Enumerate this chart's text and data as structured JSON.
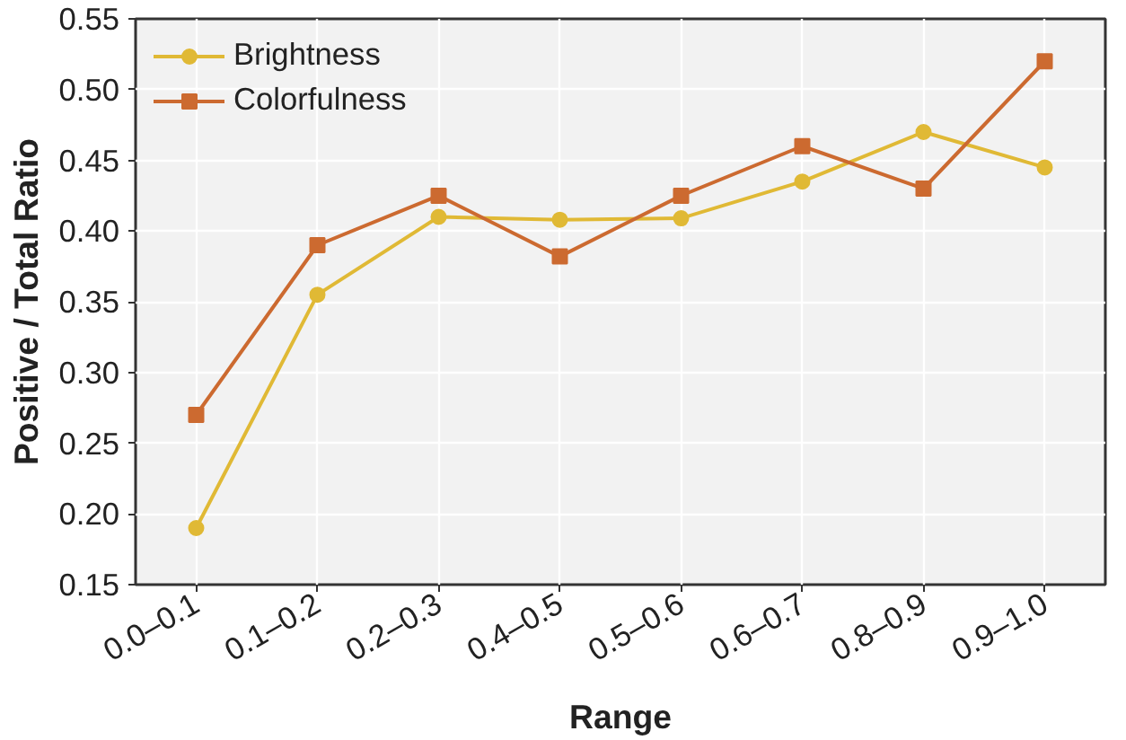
{
  "chart_data": {
    "type": "line",
    "xlabel": "Range",
    "ylabel": "Positive / Total Ratio",
    "categories": [
      "0.0–0.1",
      "0.1–0.2",
      "0.2–0.3",
      "0.4–0.5",
      "0.5–0.6",
      "0.6–0.7",
      "0.8–0.9",
      "0.9–1.0"
    ],
    "series": [
      {
        "name": "Brightness",
        "color": "#e0b935",
        "marker": "circle",
        "values": [
          0.19,
          0.355,
          0.41,
          0.408,
          0.409,
          0.435,
          0.47,
          0.445
        ]
      },
      {
        "name": "Colorfulness",
        "color": "#cc6a30",
        "marker": "square",
        "values": [
          0.27,
          0.39,
          0.425,
          0.382,
          0.425,
          0.46,
          0.43,
          0.52
        ]
      }
    ],
    "ylim": [
      0.15,
      0.55
    ],
    "yticks": [
      {
        "value": 0.15,
        "label": "0.15"
      },
      {
        "value": 0.2,
        "label": "0.20"
      },
      {
        "value": 0.25,
        "label": "0.25"
      },
      {
        "value": 0.3,
        "label": "0.30"
      },
      {
        "value": 0.35,
        "label": "0.35"
      },
      {
        "value": 0.4,
        "label": "0.40"
      },
      {
        "value": 0.45,
        "label": "0.45"
      },
      {
        "value": 0.5,
        "label": "0.50"
      },
      {
        "value": 0.55,
        "label": "0.55"
      }
    ],
    "grid": true,
    "legend": "top left",
    "line_style": "solid"
  }
}
